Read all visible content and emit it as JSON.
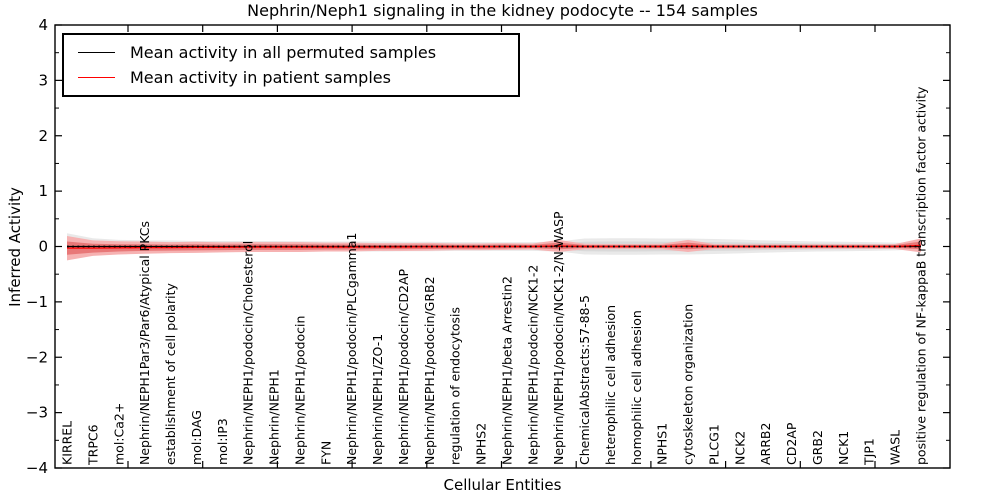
{
  "title": "Nephrin/Neph1 signaling in the kidney podocyte -- 154 samples",
  "axes": {
    "xlabel": "Cellular Entities",
    "ylabel": "Inferred Activity",
    "yticklabels": [
      "4",
      "3",
      "2",
      "1",
      "0",
      "−1",
      "−2",
      "−3",
      "−4"
    ]
  },
  "legend": {
    "items": [
      {
        "label": "Mean activity in all permuted samples",
        "color": "#000000"
      },
      {
        "label": "Mean activity in patient samples",
        "color": "#ff0000"
      }
    ]
  },
  "chart_data": {
    "type": "line",
    "title": "Nephrin/Neph1 signaling in the kidney podocyte -- 154 samples",
    "xlabel": "Cellular Entities",
    "ylabel": "Inferred Activity",
    "ylim": [
      -4,
      4
    ],
    "yticks": [
      -4,
      -3,
      -2,
      -1,
      0,
      1,
      2,
      3,
      4
    ],
    "yticks_minor": [
      -3.5,
      -2.5,
      -1.5,
      -0.5,
      0.5,
      1.5,
      2.5,
      3.5
    ],
    "grid": false,
    "legend_position": "upper left",
    "categories": [
      "KIRREL",
      "TRPC6",
      "mol:Ca2+",
      "Nephrin/NEPH1Par3/Par6/Atypical PKCs",
      "establishment of cell polarity",
      "mol:DAG",
      "mol:IP3",
      "Nephrin/NEPH1/podocin/Cholesterol",
      "Nephrin/NEPH1",
      "Nephrin/NEPH1/podocin",
      "FYN",
      "Nephrin/NEPH1/podocin/PLCgamma1",
      "Nephrin/NEPH1/ZO-1",
      "Nephrin/NEPH1/podocin/CD2AP",
      "Nephrin/NEPH1/podocin/GRB2",
      "regulation of endocytosis",
      "NPHS2",
      "Nephrin/NEPH1/beta Arrestin2",
      "Nephrin/NEPH1/podocin/NCK1-2",
      "Nephrin/NEPH1/podocin/NCK1-2/N-WASP",
      "ChemicalAbstracts:57-88-5",
      "heterophilic cell adhesion",
      "homophilic cell adhesion",
      "NPHS1",
      "cytoskeleton organization",
      "PLCG1",
      "NCK2",
      "ARRB2",
      "CD2AP",
      "GRB2",
      "NCK1",
      "TJP1",
      "WASL",
      "positive regulation of NF-kappaB transcription factor activity"
    ],
    "series": [
      {
        "name": "Mean activity in all permuted samples",
        "color": "#000000",
        "values": [
          0,
          0,
          0,
          0,
          0,
          0,
          0,
          0,
          0,
          0,
          0,
          0,
          0,
          0,
          0,
          0,
          0,
          0,
          0,
          0,
          0,
          0,
          0,
          0,
          0,
          0,
          0,
          0,
          0,
          0,
          0,
          0,
          0,
          0
        ]
      },
      {
        "name": "Mean activity in patient samples",
        "color": "#ff0000",
        "values": [
          -0.03,
          -0.03,
          -0.025,
          -0.02,
          -0.02,
          -0.015,
          -0.015,
          -0.01,
          -0.01,
          -0.01,
          -0.01,
          -0.01,
          -0.008,
          -0.008,
          -0.005,
          -0.005,
          -0.005,
          0,
          0,
          0.01,
          0,
          0,
          0,
          0,
          0.01,
          0,
          0,
          0,
          0,
          0,
          0,
          0,
          0,
          0.02
        ]
      }
    ],
    "bands": [
      {
        "name": "permuted-spread-outer",
        "center_series": 0,
        "color": "#e9e9e9",
        "half_widths": [
          0.24,
          0.15,
          0.12,
          0.11,
          0.11,
          0.1,
          0.1,
          0.1,
          0.1,
          0.095,
          0.09,
          0.09,
          0.09,
          0.085,
          0.085,
          0.08,
          0.08,
          0.08,
          0.08,
          0.09,
          0.145,
          0.15,
          0.15,
          0.145,
          0.145,
          0.135,
          0.125,
          0.11,
          0.1,
          0.09,
          0.085,
          0.08,
          0.07,
          0.055
        ]
      },
      {
        "name": "permuted-spread-inner",
        "center_series": 0,
        "color": "#d9d9d9",
        "half_widths": [
          0.14,
          0.09,
          0.07,
          0.065,
          0.065,
          0.06,
          0.06,
          0.06,
          0.06,
          0.055,
          0.055,
          0.055,
          0.055,
          0.05,
          0.05,
          0.048,
          0.048,
          0.048,
          0.048,
          0.055,
          0.085,
          0.09,
          0.09,
          0.085,
          0.085,
          0.08,
          0.075,
          0.065,
          0.06,
          0.055,
          0.05,
          0.048,
          0.042,
          0.033
        ]
      },
      {
        "name": "patient-spread-outer",
        "center_series": 1,
        "color": "#f6b2b2",
        "half_widths": [
          0.22,
          0.14,
          0.12,
          0.11,
          0.1,
          0.1,
          0.09,
          0.09,
          0.09,
          0.09,
          0.08,
          0.08,
          0.07,
          0.07,
          0.07,
          0.06,
          0.06,
          0.06,
          0.055,
          0.11,
          0.05,
          0.045,
          0.045,
          0.05,
          0.11,
          0.045,
          0.04,
          0.04,
          0.04,
          0.04,
          0.04,
          0.04,
          0.045,
          0.125
        ]
      },
      {
        "name": "patient-spread-inner",
        "center_series": 1,
        "color": "#e87878",
        "half_widths": [
          0.12,
          0.08,
          0.065,
          0.06,
          0.055,
          0.055,
          0.05,
          0.05,
          0.05,
          0.05,
          0.045,
          0.045,
          0.04,
          0.04,
          0.04,
          0.035,
          0.035,
          0.035,
          0.03,
          0.06,
          0.028,
          0.025,
          0.025,
          0.028,
          0.06,
          0.025,
          0.022,
          0.022,
          0.022,
          0.022,
          0.022,
          0.022,
          0.025,
          0.07
        ]
      }
    ]
  }
}
